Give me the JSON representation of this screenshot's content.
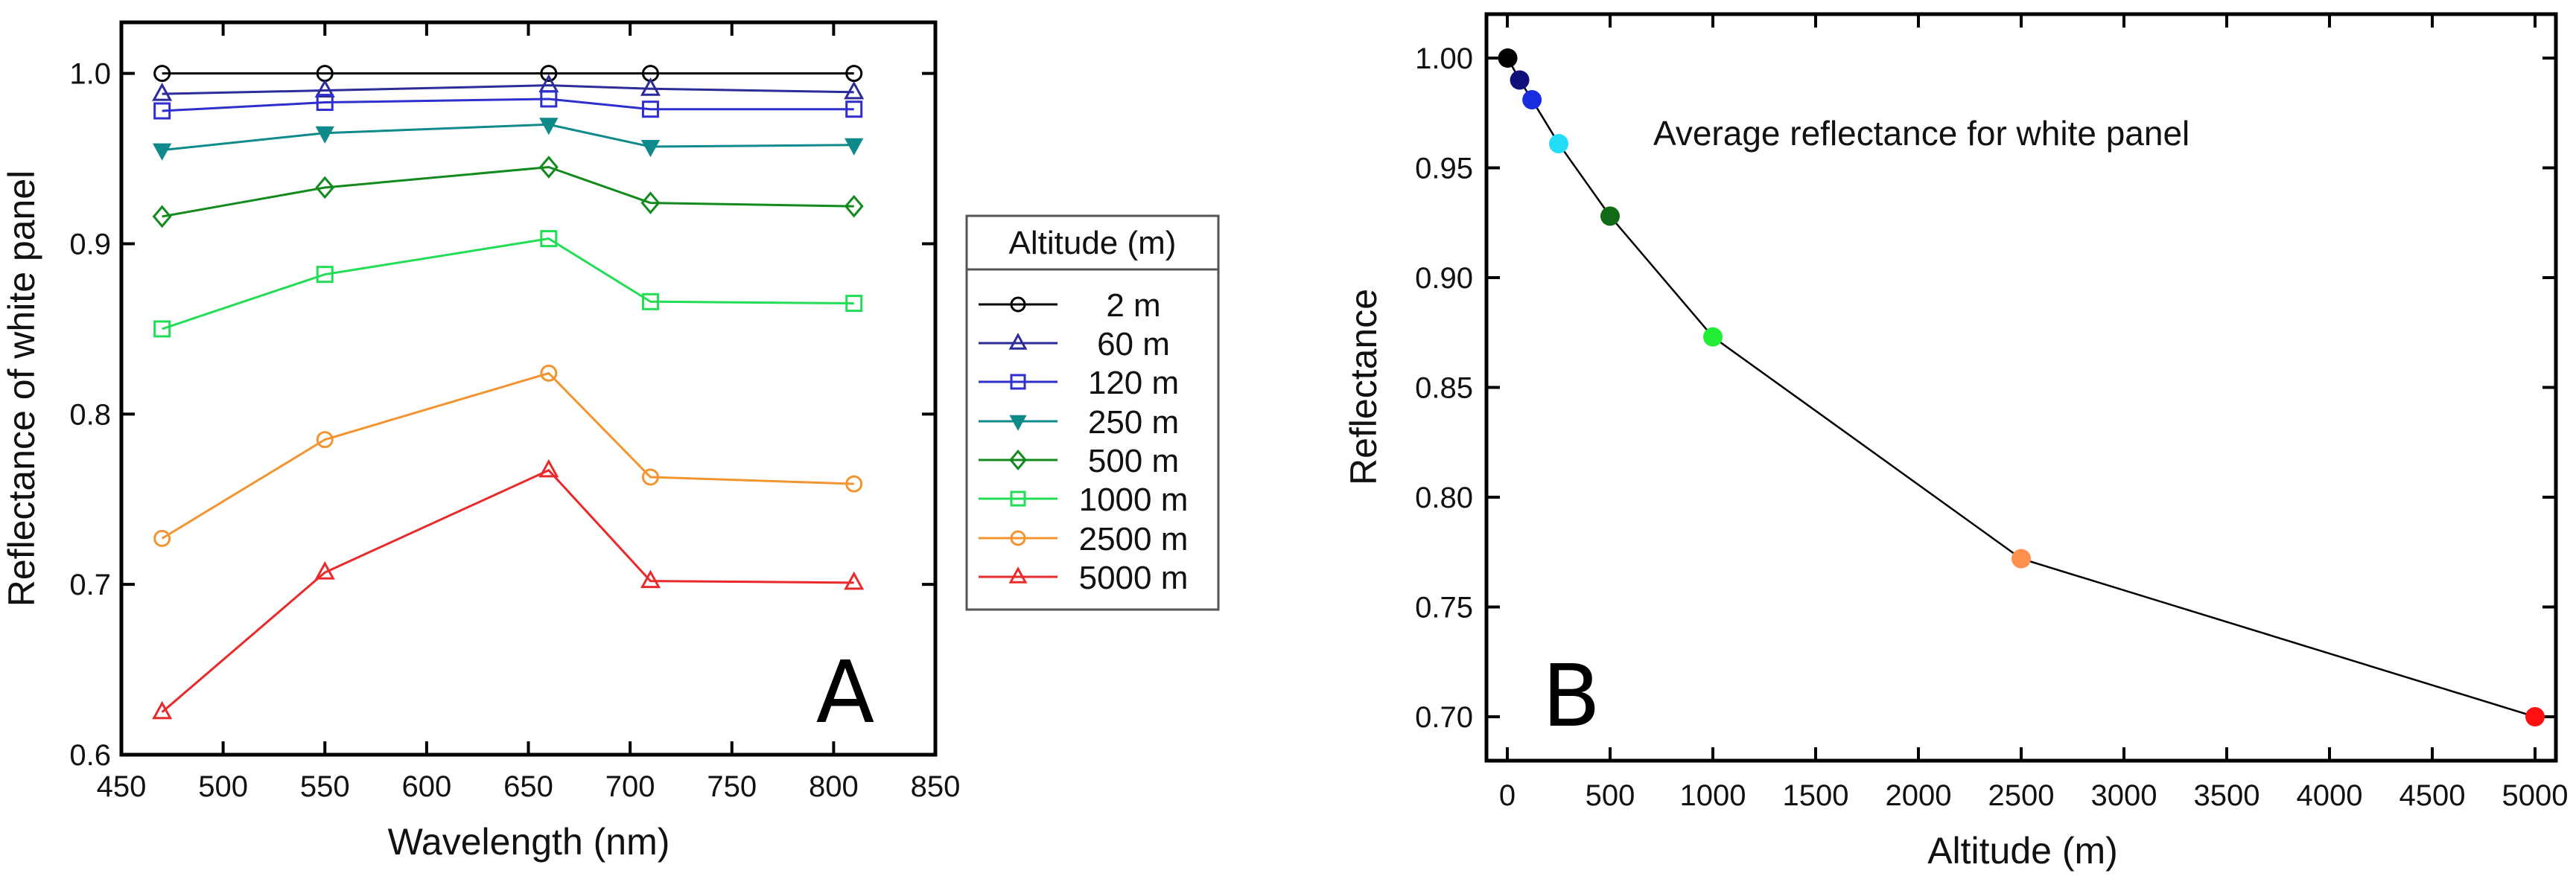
{
  "chart_data": [
    {
      "type": "line",
      "panel_label": "A",
      "xlabel": "Wavelength (nm)",
      "ylabel": "Reflectance of white panel",
      "xlim": [
        450,
        850
      ],
      "ylim": [
        0.6,
        1.03
      ],
      "x_ticks": [
        450,
        500,
        550,
        600,
        650,
        700,
        750,
        800,
        850
      ],
      "y_ticks": [
        "0.6",
        "0.7",
        "0.8",
        "0.9",
        "1.0"
      ],
      "grid": false,
      "legend_title": "Altitude (m)",
      "legend_position": "right-outside",
      "x": [
        470,
        550,
        660,
        710,
        810
      ],
      "series": [
        {
          "name": "2 m",
          "color": "#000000",
          "marker": "circle",
          "values": [
            1.0,
            1.0,
            1.0,
            1.0,
            1.0
          ]
        },
        {
          "name": "60 m",
          "color": "#2b2b9a",
          "marker": "triangle-up",
          "values": [
            0.988,
            0.99,
            0.993,
            0.991,
            0.989
          ]
        },
        {
          "name": "120 m",
          "color": "#2f2fd0",
          "marker": "square",
          "values": [
            0.978,
            0.983,
            0.985,
            0.979,
            0.979
          ]
        },
        {
          "name": "250 m",
          "color": "#0f8a8a",
          "marker": "triangle-down",
          "values": [
            0.955,
            0.965,
            0.97,
            0.957,
            0.958
          ]
        },
        {
          "name": "500 m",
          "color": "#138a1e",
          "marker": "diamond",
          "values": [
            0.916,
            0.933,
            0.945,
            0.924,
            0.922
          ]
        },
        {
          "name": "1000 m",
          "color": "#22dd55",
          "marker": "square",
          "values": [
            0.85,
            0.882,
            0.903,
            0.866,
            0.865
          ]
        },
        {
          "name": "2500 m",
          "color": "#f39431",
          "marker": "circle",
          "values": [
            0.727,
            0.785,
            0.824,
            0.763,
            0.759
          ]
        },
        {
          "name": "5000 m",
          "color": "#e82a2a",
          "marker": "triangle-up",
          "values": [
            0.625,
            0.707,
            0.767,
            0.702,
            0.701
          ]
        }
      ]
    },
    {
      "type": "line",
      "panel_label": "B",
      "annotation": "Average reflectance for white panel",
      "xlabel": "Altitude (m)",
      "ylabel": "Reflectance",
      "xlim": [
        -100,
        5100
      ],
      "ylim": [
        0.68,
        1.02
      ],
      "x_ticks": [
        0,
        500,
        1000,
        1500,
        2000,
        2500,
        3000,
        3500,
        4000,
        4500,
        5000
      ],
      "y_ticks": [
        "0.70",
        "0.75",
        "0.80",
        "0.85",
        "0.90",
        "0.95",
        "1.00"
      ],
      "grid": false,
      "line_color": "#000000",
      "points": [
        {
          "x": 2,
          "y": 1.0,
          "color": "#000000"
        },
        {
          "x": 60,
          "y": 0.99,
          "color": "#10107a"
        },
        {
          "x": 120,
          "y": 0.981,
          "color": "#1a2ee0"
        },
        {
          "x": 250,
          "y": 0.961,
          "color": "#22ddf5"
        },
        {
          "x": 500,
          "y": 0.928,
          "color": "#116b16"
        },
        {
          "x": 1000,
          "y": 0.873,
          "color": "#22ee33"
        },
        {
          "x": 2500,
          "y": 0.772,
          "color": "#ff9050"
        },
        {
          "x": 5000,
          "y": 0.7,
          "color": "#ff1010"
        }
      ]
    }
  ]
}
